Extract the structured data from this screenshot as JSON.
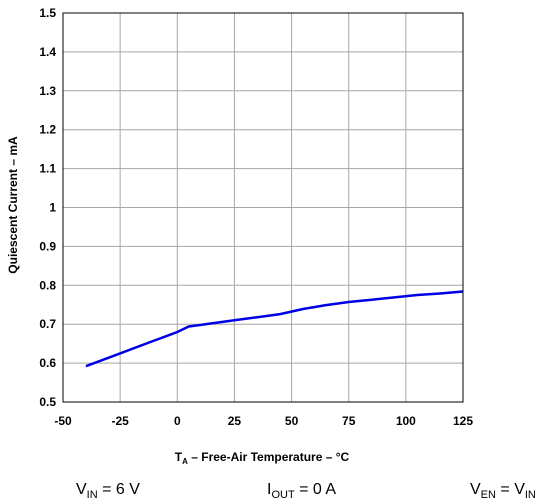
{
  "chart_data": {
    "type": "line",
    "ylabel": "Quiescent Current – mA",
    "xlabel": {
      "symbol": "T",
      "subscript": "A",
      "text": " – Free-Air Temperature – °C"
    },
    "xlim": [
      -50,
      125
    ],
    "ylim": [
      0.5,
      1.5
    ],
    "xticks": [
      -50,
      -25,
      0,
      25,
      50,
      75,
      100,
      125
    ],
    "yticks": [
      0.5,
      0.6,
      0.7,
      0.8,
      0.9,
      1,
      1.1,
      1.2,
      1.3,
      1.4,
      1.5
    ],
    "xtick_labels": [
      "-50",
      "-25",
      "0",
      "25",
      "50",
      "75",
      "100",
      "125"
    ],
    "ytick_labels": [
      "0.5",
      "0.6",
      "0.7",
      "0.8",
      "0.9",
      "1",
      "1.1",
      "1.2",
      "1.3",
      "1.4",
      "1.5"
    ],
    "grid": true,
    "series": [
      {
        "color": "#0000e6",
        "x": [
          -40,
          -30,
          -20,
          -10,
          -5,
          0,
          5,
          10,
          15,
          25,
          35,
          45,
          55,
          65,
          75,
          85,
          95,
          105,
          115,
          125
        ],
        "y": [
          0.592,
          0.614,
          0.636,
          0.658,
          0.669,
          0.68,
          0.694,
          0.698,
          0.702,
          0.71,
          0.718,
          0.726,
          0.739,
          0.749,
          0.757,
          0.763,
          0.769,
          0.775,
          0.779,
          0.784
        ]
      }
    ]
  },
  "conditions": [
    {
      "symbol": "V",
      "subscript": "IN",
      "text": " = 6 V"
    },
    {
      "symbol": "I",
      "subscript": "OUT",
      "text": " = 0 A"
    },
    {
      "symbol": "V",
      "subscript": "EN",
      "text": " = V",
      "trail_sub": "IN"
    }
  ]
}
